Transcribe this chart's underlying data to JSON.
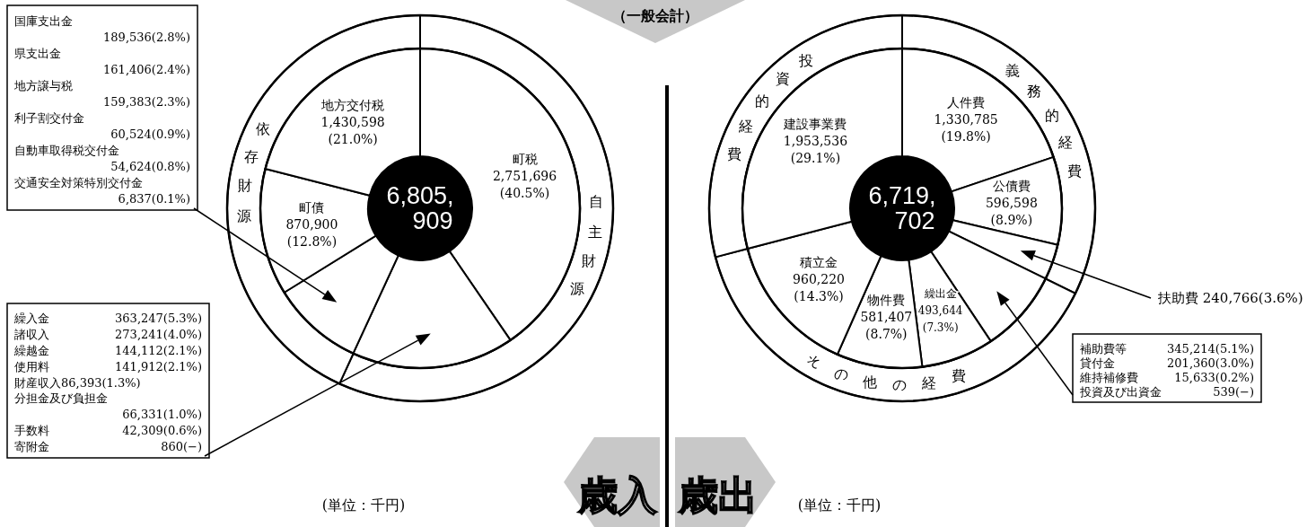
{
  "chart_data": [
    {
      "type": "donut",
      "title": "歳入",
      "categories": [
        "自主財源",
        "依存財源"
      ],
      "values": [
        56.86,
        43.14
      ],
      "colors": [
        "#ffffff",
        "#ffffff"
      ],
      "annotations": [
        "(単位：千円)",
        "（一般会計）"
      ]
    },
    {
      "type": "donut",
      "categories": [
        "町税",
        null,
        null,
        "町債",
        "地方交付税"
      ],
      "values": [
        2751696,
        1118405,
        632310,
        870900,
        1430598
      ],
      "colors": [
        "#ffffff",
        "#ffffff",
        "#ffffff",
        "#ffffff",
        "#ffffff"
      ],
      "value_labels": [
        "2,751,696\n(40.5%)",
        null,
        null,
        "870,900\n(12.8%)",
        "1,430,598\n(21.0%)"
      ],
      "annotations": [
        "6,805,909",
        "繰入金 363,247(5.3%)\n諸収入 273,241(4.0%)\n繰越金 144,112(2.1%)\n使用料 141,912(2.1%)\n財産収入86,393(1.3%)\n分担金及び負担金\n66,331(1.0%)\n手数料 42,309(0.6%)\n寄附金 860(−)",
        "国庫支出金\n189,536(2.8%)\n県支出金\n161,406(2.4%)\n地方譲与税\n159,383(2.3%)\n利子割交付金\n60,524(0.9%)\n自動車取得税交付金\n54,624(0.8%)\n交通安全対策特別交付金\n6,837(0.1%)"
      ]
    },
    {
      "type": "donut",
      "title": "歳出",
      "categories": [
        "義務的経費",
        "その他の経費",
        "投資的経費"
      ],
      "values": [
        32.27,
        38.66,
        29.07
      ],
      "colors": [
        "#ffffff",
        "#ffffff",
        "#ffffff"
      ],
      "annotations": [
        "(単位：千円)"
      ]
    },
    {
      "type": "donut",
      "categories": [
        "人件費",
        "公債費",
        "扶助費",
        null,
        "繰出金",
        "物件費",
        "積立金",
        "建設事業費"
      ],
      "values": [
        1330785,
        596598,
        240766,
        562746,
        493644,
        581407,
        960220,
        1953536
      ],
      "colors": [
        "#ffffff",
        "#ffffff",
        "#ffffff",
        "#ffffff",
        "#ffffff",
        "#ffffff",
        "#ffffff",
        "#ffffff"
      ],
      "value_labels": [
        "1,330,785\n(19.8%)",
        "596,598\n(8.9%)",
        "240,766(3.6%)",
        null,
        "493,644\n(7.3%)",
        "581,407\n(8.7%)",
        "960,220\n(14.3%)",
        "1,953,536\n(29.1%)"
      ],
      "annotations": [
        "6,719,702",
        "補助費等 345,214(5.1%)\n貸付金 201,360(3.0%)\n維持補修費 15,633(0.2%)\n投資及び出資金 539(−)"
      ]
    }
  ]
}
